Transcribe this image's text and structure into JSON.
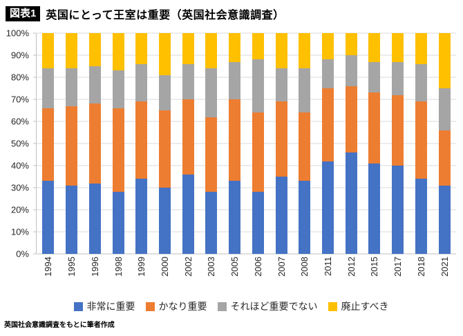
{
  "header": {
    "badge": "図表1",
    "title": "英国にとって王室は重要（英国社会意識調査）"
  },
  "footer": {
    "source": "英国社会意識調査をもとに筆者作成"
  },
  "chart_data": {
    "type": "bar",
    "stacked": true,
    "percent": true,
    "title": "英国にとって王室は重要（英国社会意識調査）",
    "xlabel": "",
    "ylabel": "",
    "ylim": [
      0,
      100
    ],
    "ytick_step": 10,
    "ytick_suffix": "%",
    "grid": true,
    "legend_position": "bottom",
    "categories": [
      "1994",
      "1995",
      "1996",
      "1998",
      "1999",
      "2000",
      "2002",
      "2003",
      "2005",
      "2006",
      "2007",
      "2008",
      "2011",
      "2012",
      "2015",
      "2017",
      "2018",
      "2021"
    ],
    "series": [
      {
        "name": "非常に重要",
        "color": "#4472C4",
        "values": [
          33,
          31,
          32,
          28,
          34,
          30,
          36,
          28,
          33,
          28,
          35,
          33,
          42,
          46,
          41,
          40,
          34,
          31
        ]
      },
      {
        "name": "かなり重要",
        "color": "#ED7D31",
        "values": [
          33,
          36,
          36,
          38,
          35,
          35,
          34,
          34,
          37,
          36,
          34,
          31,
          33,
          30,
          32,
          32,
          35,
          25
        ]
      },
      {
        "name": "それほど重要でない",
        "color": "#A5A5A5",
        "values": [
          18,
          17,
          17,
          17,
          17,
          16,
          16,
          22,
          17,
          24,
          15,
          20,
          13,
          14,
          14,
          15,
          17,
          19
        ]
      },
      {
        "name": "廃止すべき",
        "color": "#FFC000",
        "values": [
          16,
          16,
          15,
          17,
          14,
          19,
          14,
          16,
          13,
          12,
          16,
          16,
          12,
          10,
          13,
          13,
          14,
          25
        ]
      }
    ]
  }
}
